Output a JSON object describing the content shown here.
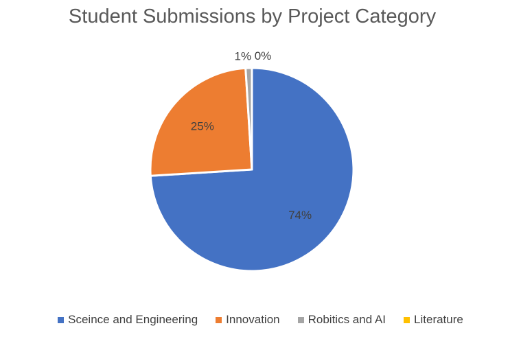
{
  "chart_data": {
    "type": "pie",
    "title": "Student Submissions by Project Category",
    "categories": [
      "Sceince and Engineering",
      "Innovation",
      "Robitics and AI",
      "Literature"
    ],
    "values": [
      74,
      25,
      1,
      0
    ],
    "data_labels": [
      "74%",
      "25%",
      "1%",
      "0%"
    ],
    "colors": [
      "#4472C4",
      "#ED7D31",
      "#A5A5A5",
      "#FFC000"
    ],
    "legend_position": "bottom"
  }
}
